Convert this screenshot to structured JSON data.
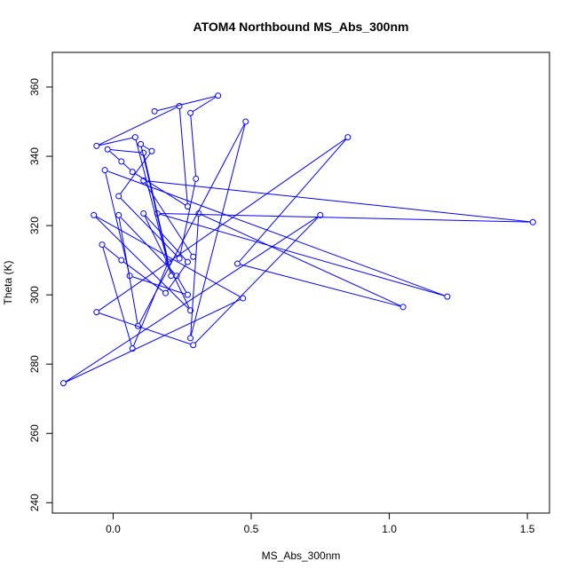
{
  "chart_data": {
    "type": "line",
    "title": "ATOM4 Northbound MS_Abs_300nm",
    "xlabel": "MS_Abs_300nm",
    "ylabel": "Theta (K)",
    "xlim": [
      -0.22,
      1.58
    ],
    "ylim": [
      237,
      370
    ],
    "xticks": [
      0.0,
      0.5,
      1.0,
      1.5
    ],
    "xtick_labels": [
      "0.0",
      "0.5",
      "1.0",
      "1.5"
    ],
    "yticks": [
      240,
      260,
      280,
      300,
      320,
      340,
      360
    ],
    "yticks_labels": [
      "240",
      "260",
      "280",
      "300",
      "320",
      "340",
      "360"
    ],
    "color": "#0000ff",
    "marker": "open-circle",
    "grid": false,
    "series": [
      {
        "name": "",
        "x": [
          0.15,
          0.38,
          0.28,
          0.3,
          0.24,
          0.02,
          0.14,
          0.1,
          0.21,
          0.08,
          -0.06,
          0.24,
          0.27,
          0.07,
          0.03,
          -0.02,
          0.11,
          0.2,
          0.07,
          -0.04,
          0.03,
          0.19,
          0.27,
          0.11,
          0.28,
          -0.07,
          0.47,
          -0.18,
          0.75,
          0.29,
          -0.06,
          0.85,
          0.45,
          1.05,
          0.31,
          0.28,
          0.48,
          0.09,
          0.02,
          0.23,
          0.27,
          0.06,
          -0.03,
          1.21,
          0.16,
          1.52,
          0.11,
          0.29
        ],
        "y": [
          353,
          357.5,
          352.5,
          333.5,
          310.5,
          328.5,
          341.5,
          343.5,
          305.5,
          345.5,
          343,
          354.5,
          325.5,
          335.5,
          338.5,
          342,
          341,
          309.5,
          284.5,
          314.5,
          310,
          300.5,
          309.5,
          323.5,
          295.5,
          323,
          299,
          274.5,
          323,
          285.5,
          295,
          345.5,
          309,
          296.5,
          323.5,
          287.5,
          350,
          291,
          323,
          305.5,
          300,
          305.5,
          336,
          299.5,
          323.5,
          321,
          333,
          311
        ]
      }
    ]
  }
}
